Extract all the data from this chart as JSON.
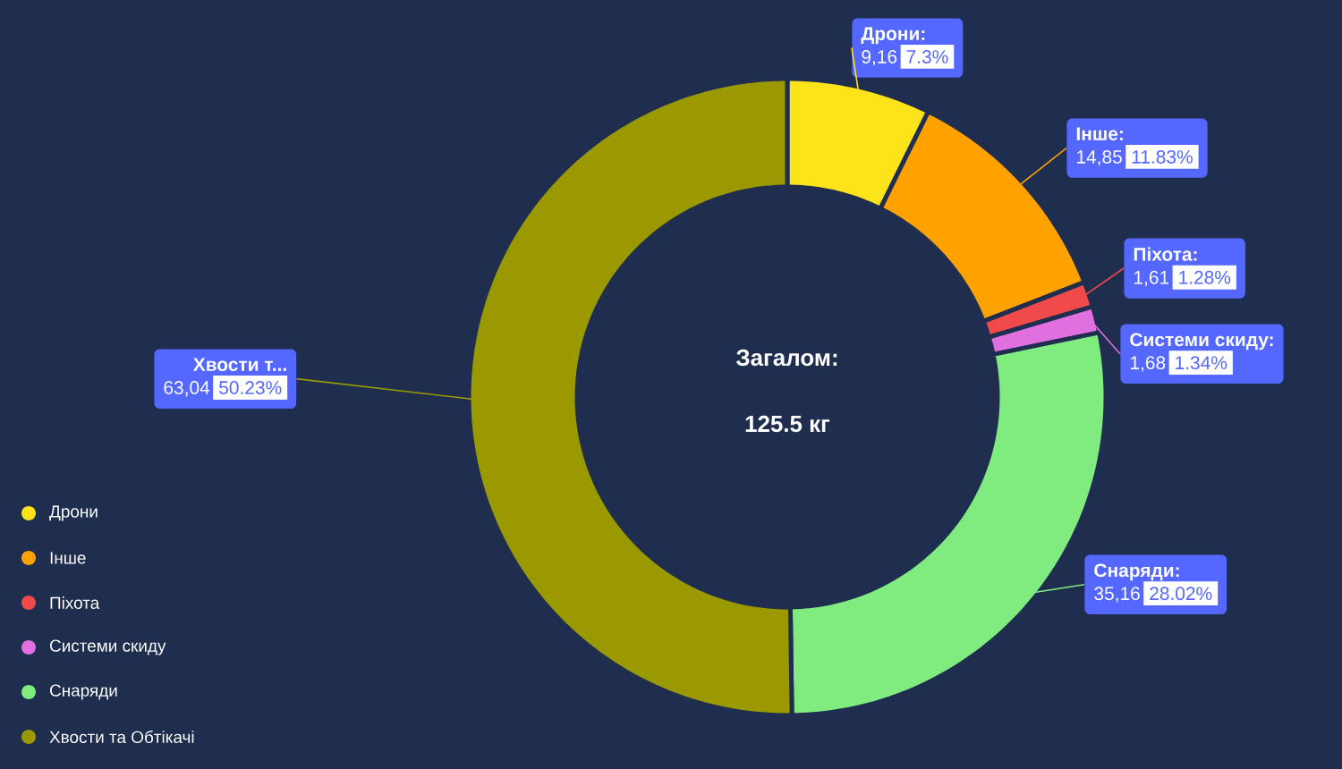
{
  "chart_data": {
    "type": "donut",
    "title": "Загалом:",
    "subtitle": "125.5 кг",
    "categories": [
      "Дрони",
      "Інше",
      "Піхота",
      "Системи скиду",
      "Снаряди",
      "Хвости та Обтікачі"
    ],
    "values": [
      9.16,
      14.85,
      1.61,
      1.68,
      35.16,
      63.04
    ],
    "colors": [
      "#fde31a",
      "#ffa200",
      "#f04a4a",
      "#e070e0",
      "#80ec80",
      "#9a9a00"
    ],
    "value_labels": [
      "9,16",
      "14,85",
      "1,61",
      "1,68",
      "35,16",
      "63,04"
    ],
    "annotations": [
      "Дрони:",
      "Інше:",
      "Піхота:",
      "Системи скиду:",
      "Снаряди:",
      "Хвости т...",
      "7.3%",
      "11.83%",
      "1.28%",
      "1.34%",
      "28.02%",
      "50.23%"
    ],
    "legend": "bottom left"
  }
}
